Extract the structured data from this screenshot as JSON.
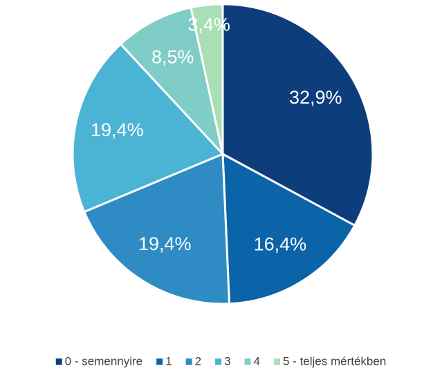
{
  "chart_data": {
    "type": "pie",
    "categories": [
      "0 - semennyire",
      "1",
      "2",
      "3",
      "4",
      "5 - teljes mértékben"
    ],
    "values": [
      32.9,
      16.4,
      19.4,
      19.4,
      8.5,
      3.4
    ],
    "value_labels": [
      "32,9%",
      "16,4%",
      "19,4%",
      "19,4%",
      "8,5%",
      "3,4%"
    ],
    "colors": [
      "#0e3d7c",
      "#0b63a8",
      "#2e8bc3",
      "#4bb3d4",
      "#7fcdc6",
      "#a9dfb5"
    ],
    "legend": "bottom"
  }
}
